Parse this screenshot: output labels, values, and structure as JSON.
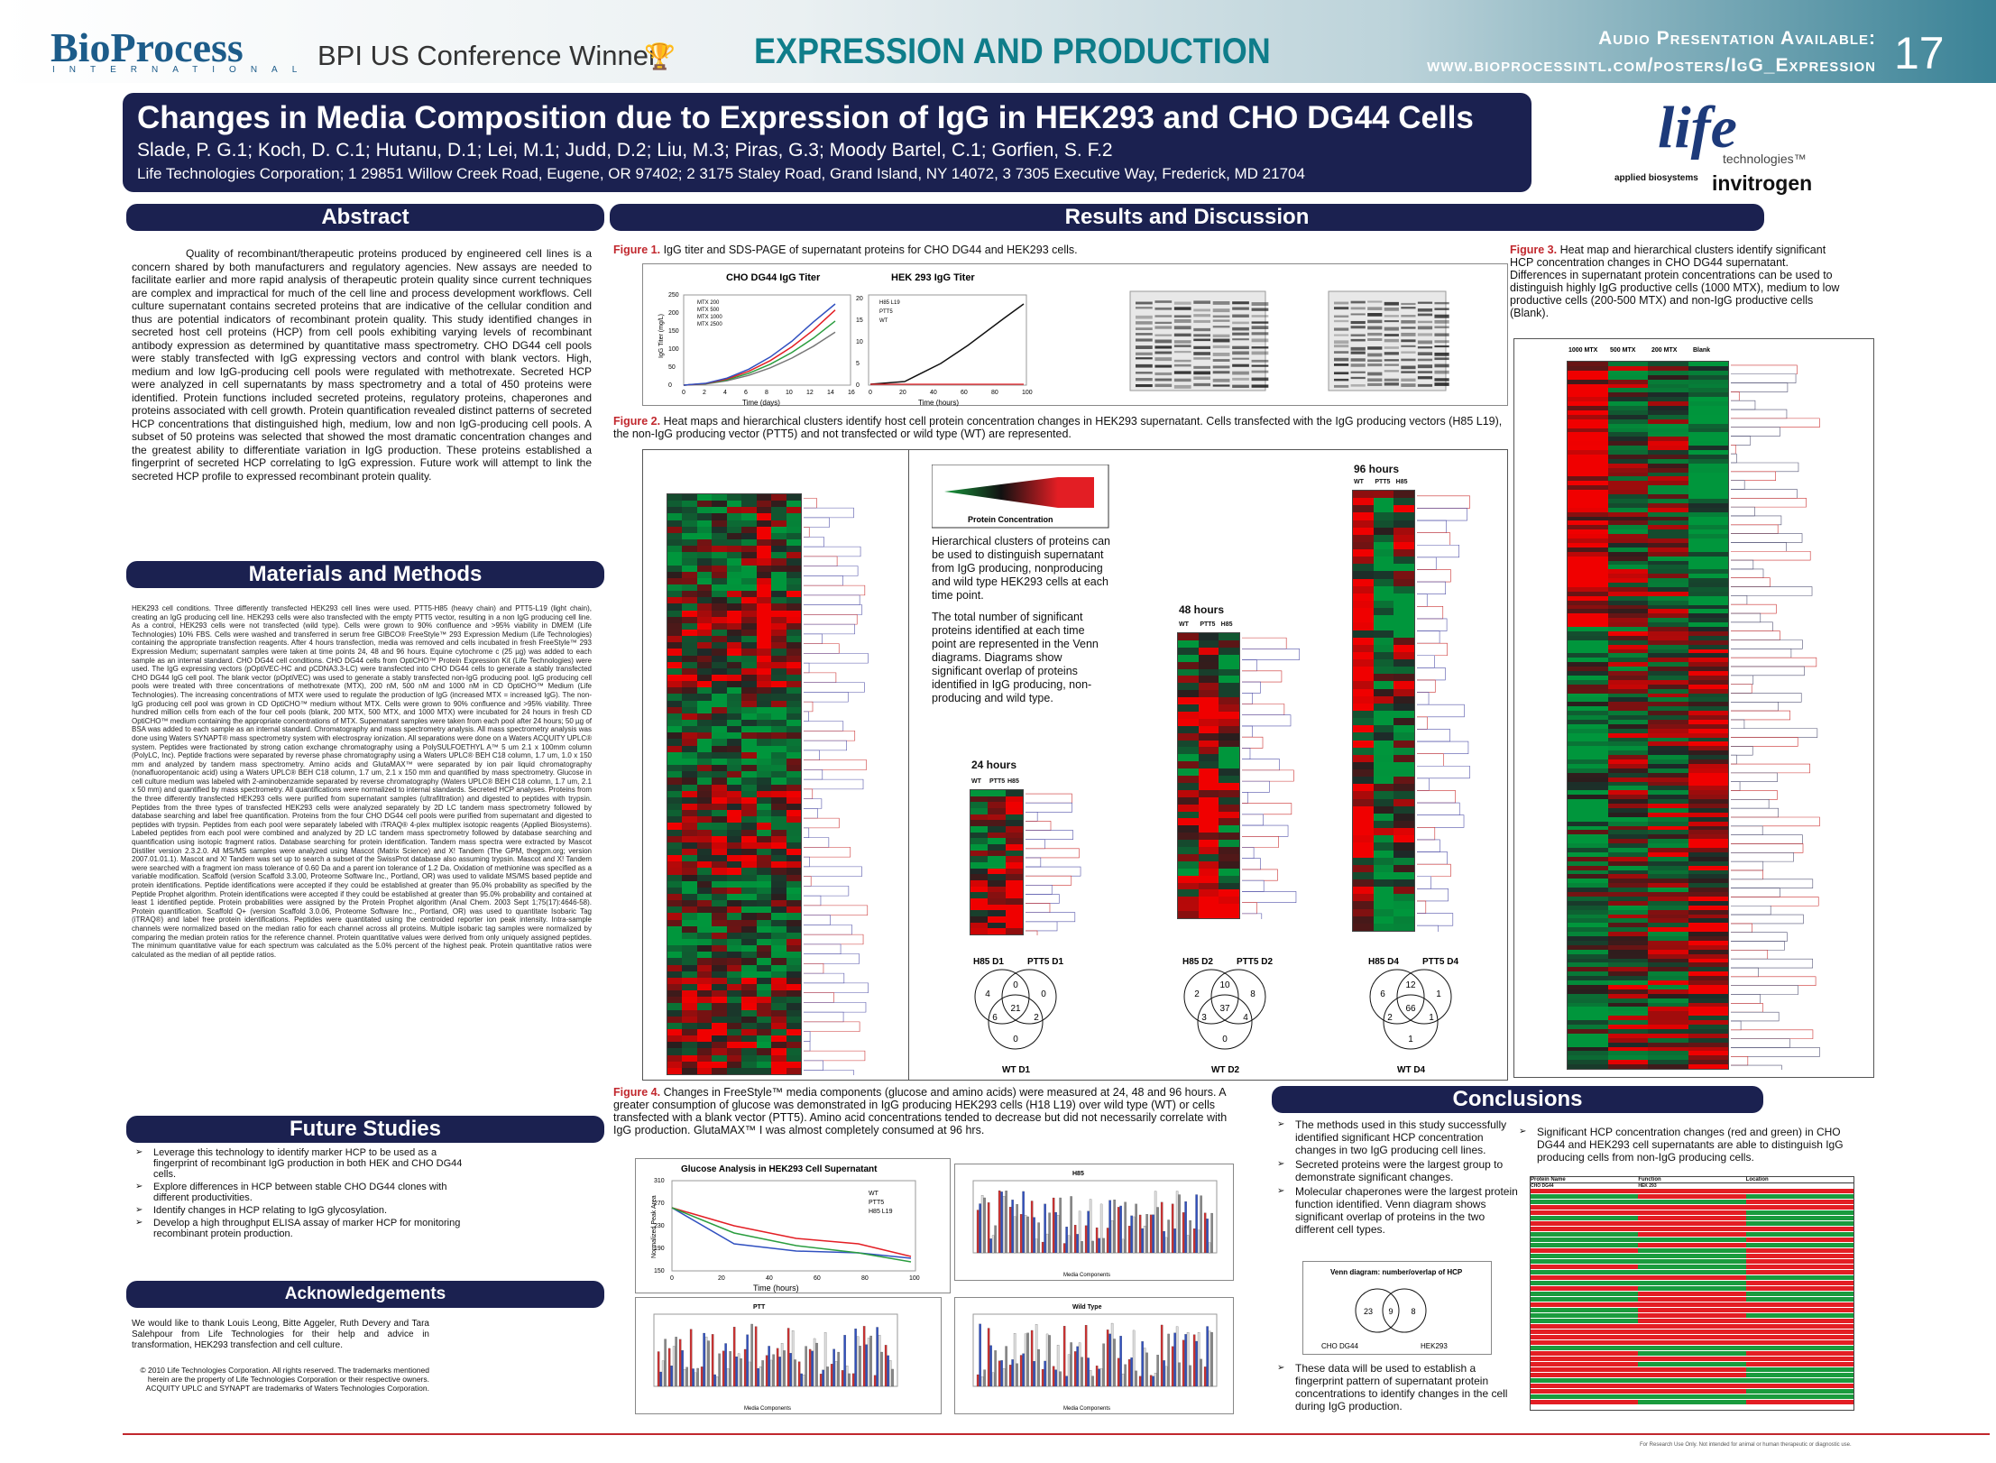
{
  "banner": {
    "journal": "BioProcess",
    "journal_sub": "INTERNATIONAL",
    "conference": "BPI US Conference Winner",
    "section": "EXPRESSION AND PRODUCTION",
    "audio_line1": "Audio Presentation Available:",
    "audio_line2": "www.bioprocessintl.com/posters/IgG_Expression",
    "page": "17"
  },
  "header": {
    "title": "Changes in Media Composition due to Expression of IgG in HEK293 and CHO DG44 Cells",
    "authors": "Slade, P. G.1; Koch, D. C.1; Hutanu, D.1; Lei, M.1; Judd, D.2; Liu, M.3; Piras, G.3; Moody Bartel, C.1; Gorfien, S. F.2",
    "affiliation": "Life Technologies Corporation; 1 29851 Willow Creek Road, Eugene, OR 97402; 2 3175 Staley Road, Grand Island, NY 14072, 3 7305 Executive Way, Frederick, MD 21704"
  },
  "logos": {
    "life": "life",
    "technologies": "technologies™",
    "applied": "applied biosystems",
    "invitrogen": "invitrogen"
  },
  "abstract": {
    "title": "Abstract",
    "text": "Quality of recombinant/therapeutic proteins produced by engineered cell lines is a concern shared by both manufacturers and regulatory agencies. New assays are needed to facilitate earlier and more rapid analysis of therapeutic protein quality since current techniques are complex and impractical for much of the cell line and process development workflows. Cell culture supernatant contains secreted proteins that are indicative of the cellular condition and thus are potential indicators of recombinant protein quality. This study identified changes in secreted host cell proteins (HCP) from cell pools exhibiting varying levels of recombinant antibody expression as determined by quantitative mass spectrometry. CHO DG44 cell pools were stably transfected with IgG expressing vectors and control with blank vectors. High, medium and low IgG-producing cell pools were regulated with methotrexate. Secreted HCP were analyzed in cell supernatants by mass spectrometry and a total of 450 proteins were identified. Protein functions included secreted proteins, regulatory proteins, chaperones and proteins associated with cell growth. Protein quantification revealed distinct patterns of secreted HCP concentrations that distinguished high, medium, low and non IgG-producing cell pools. A subset of 50 proteins was selected that showed the most dramatic concentration changes and the greatest ability to differentiate variation in IgG production. These proteins established a fingerprint of secreted HCP correlating to IgG expression. Future work will attempt to link the secreted HCP profile to expressed recombinant protein quality."
  },
  "methods": {
    "title": "Materials and Methods",
    "text": "HEK293 cell conditions. Three differently transfected HEK293 cell lines were used. PTT5-H85 (heavy chain) and PTT5-L19 (light chain), creating an IgG producing cell line. HEK293 cells were also transfected with the empty PTT5 vector, resulting in a non IgG producing cell line. As a control, HEK293 cells were not transfected (wild type). Cells were grown to 90% confluence and >95% viability in DMEM (Life Technologies) 10% FBS. Cells were washed and transferred in serum free GIBCO® FreeStyle™ 293 Expression Medium (Life Technologies) containing the appropriate transfection reagents. After 4 hours transfection, media was removed and cells incubated in fresh FreeStyle™ 293 Expression Medium; supernatant samples were taken at time points 24, 48 and 96 hours. Equine cytochrome c (25 µg) was added to each sample as an internal standard. CHO DG44 cell conditions. CHO DG44 cells from OptiCHO™ Protein Expression Kit (Life Technologies) were used. The IgG expressing vectors (pOptiVEC-HC and pCDNA3.3-LC) were transfected into CHO DG44 cells to generate a stably transfected CHO DG44 IgG cell pool. The blank vector (pOptiVEC) was used to generate a stably transfected non-IgG producing pool. IgG producing cell pools were treated with three concentrations of methotrexate (MTX), 200 nM, 500 nM and 1000 nM in CD OptiCHO™ Medium (Life Technologies). The increasing concentrations of MTX were used to regulate the production of IgG (increased MTX = increased IgG). The non-IgG producing cell pool was grown in CD OptiCHO™ medium without MTX. Cells were grown to 90% confluence and >95% viability. Three hundred million cells from each of the four cell pools (blank, 200 MTX, 500 MTX, and 1000 MTX) were incubated for 24 hours in fresh CD OptiCHO™ medium containing the appropriate concentrations of MTX. Supernatant samples were taken from each pool after 24 hours; 50 µg of BSA was added to each sample as an internal standard. Chromatography and mass spectrometry analysis. All mass spectrometry analysis was done using Waters SYNAPT® mass spectrometry system with electrospray ionization. All separations were done on a Waters ACQUITY UPLC® system. Peptides were fractionated by strong cation exchange chromatography using a PolySULFOETHYL A™ 5 um 2.1 x 100mm column (PolyLC, Inc). Peptide fractions were separated by reverse phase chromatography using a Waters UPLC® BEH C18 column, 1.7 um, 1.0 x 150 mm and analyzed by tandem mass spectrometry. Amino acids and GlutaMAX™ were separated by ion pair liquid chromatography (nonafluoropentanoic acid) using a Waters UPLC® BEH C18 column, 1.7 um, 2.1 x 150 mm and quantified by mass spectrometry. Glucose in cell culture medium was labeled with 2-aminobenzamide separated by reverse chromatography (Waters UPLC® BEH C18 column, 1.7 um, 2.1 x 50 mm) and quantified by mass spectrometry. All quantifications were normalized to internal standards. Secreted HCP analyses. Proteins from the three differently transfected HEK293 cells were purified from supernatant samples (ultrafiltration) and digested to peptides with trypsin. Peptides from the three types of transfected HEK293 cells were analyzed separately by 2D LC tandem mass spectrometry followed by database searching and label free quantification. Proteins from the four CHO DG44 cell pools were purified from supernatant and digested to peptides with trypsin. Peptides from each pool were separately labeled with iTRAQ® 4-plex multiplex isotopic reagents (Applied Biosystems). Labeled peptides from each pool were combined and analyzed by 2D LC tandem mass spectrometry followed by database searching and quantification using isotopic fragment ratios. Database searching for protein identification. Tandem mass spectra were extracted by Mascot Distiller version 2.3.2.0. All MS/MS samples were analyzed using Mascot (Matrix Science) and X! Tandem (The GPM, thegpm.org; version 2007.01.01.1). Mascot and X! Tandem was set up to search a subset of the SwissProt database also assuming trypsin. Mascot and X! Tandem were searched with a fragment ion mass tolerance of 0.60 Da and a parent ion tolerance of 1.2 Da. Oxidation of methionine was specified as a variable modification. Scaffold (version Scaffold 3.3.00, Proteome Software Inc., Portland, OR) was used to validate MS/MS based peptide and protein identifications. Peptide identifications were accepted if they could be established at greater than 95.0% probability as specified by the Peptide Prophet algorithm. Protein identifications were accepted if they could be established at greater than 95.0% probability and contained at least 1 identified peptide. Protein probabilities were assigned by the Protein Prophet algorithm (Anal Chem. 2003 Sept 1;75(17):4646-58). Protein quantification. Scaffold Q+ (version Scaffold 3.0.06, Proteome Software Inc., Portland, OR) was used to quantitate Isobaric Tag (iTRAQ®) and label free protein identifications. Peptides were quantitated using the centroided reporter ion peak intensity. Intra-sample channels were normalized based on the median ratio for each channel across all proteins. Multiple isobaric tag samples were normalized by comparing the median protein ratios for the reference channel. Protein quantitative values were derived from only uniquely assigned peptides. The minimum quantitative value for each spectrum was calculated as the 5.0% percent of the highest peak. Protein quantitative ratios were calculated as the median of all peptide ratios."
  },
  "future": {
    "title": "Future Studies",
    "items": [
      "Leverage this technology to identify marker HCP to be used as a fingerprint of recombinant IgG production in both HEK and CHO DG44 cells.",
      "Explore differences in HCP between stable CHO DG44 clones with different productivities.",
      "Identify changes in HCP relating to IgG glycosylation.",
      "Develop a high throughput ELISA assay of marker HCP for monitoring recombinant protein production."
    ]
  },
  "ack": {
    "title": "Acknowledgements",
    "text": "We would like to thank Louis Leong, Bitte Aggeler, Ruth Devery and Tara Salehpour from Life Technologies for their help and advice in transformation, HEK293 transfection and cell culture.",
    "copyright": "© 2010 Life Technologies Corporation. All rights reserved. The trademarks mentioned herein are the property of Life Technologies Corporation or their respective owners. ACQUITY UPLC and SYNAPT are trademarks of Waters Technologies Corporation."
  },
  "results": {
    "title": "Results and Discussion",
    "fig1": {
      "label": "Figure 1.",
      "text": "IgG titer and SDS-PAGE of supernatant proteins for CHO DG44 and HEK293 cells."
    },
    "fig2": {
      "label": "Figure 2.",
      "text": "Heat maps and hierarchical clusters identify host cell protein concentration changes in HEK293 supernatant. Cells transfected with the IgG producing vectors (H85 L19), the non-IgG producing vector (PTT5) and not transfected or wild type (WT) are represented."
    },
    "fig2_legend": "Protein Concentration",
    "fig2_note1": "Hierarchical clusters of proteins can be used to distinguish supernatant from IgG producing, nonproducing and wild type HEK293 cells at each time point.",
    "fig2_note2": "The total number of significant proteins identified at each time point are represented in the Venn diagrams. Diagrams show significant overlap of proteins identified in IgG producing, non-producing and wild type.",
    "hours24": "24 hours",
    "hours48": "48 hours",
    "hours96": "96 hours",
    "cols3": [
      "WT",
      "PTT5",
      "H85"
    ],
    "venn24": {
      "a": "H85 D1",
      "b": "PTT5 D1",
      "c": "WT D1",
      "v": [
        "4",
        "0",
        "0",
        "21",
        "6",
        "2",
        "0"
      ]
    },
    "venn48": {
      "a": "H85 D2",
      "b": "PTT5 D2",
      "c": "WT D2",
      "v": [
        "2",
        "10",
        "8",
        "37",
        "3",
        "4",
        "0"
      ]
    },
    "venn96": {
      "a": "H85 D4",
      "b": "PTT5 D4",
      "c": "WT D4",
      "v": [
        "6",
        "12",
        "1",
        "66",
        "2",
        "1",
        "1"
      ]
    },
    "fig3": {
      "label": "Figure 3.",
      "text": "Heat map and hierarchical clusters identify significant HCP concentration changes in CHO DG44 supernatant. Differences in supernatant protein concentrations can be used to distinguish highly IgG productive cells (1000 MTX), medium to low productive cells (200-500 MTX) and non-IgG productive cells (Blank)."
    },
    "fig3_cols": [
      "1000 MTX",
      "500 MTX",
      "200 MTX",
      "Blank"
    ],
    "fig4": {
      "label": "Figure 4.",
      "text": "Changes in FreeStyle™ media components (glucose and amino acids) were measured at 24, 48 and 96 hours. A greater consumption of glucose was demonstrated in IgG producing HEK293 cells (H18 L19) over wild type (WT) or cells transfected with a blank vector (PTT5). Amino acid concentrations tended to decrease but did not necessarily correlate with IgG production. GlutaMAX™ I was almost completely consumed at 96 hrs."
    }
  },
  "chart_cho": {
    "title": "CHO DG44 IgG Titer",
    "xlabel": "Time (days)",
    "ylabel": "IgG Titer (mg/L)",
    "xticks": [
      "0",
      "2",
      "4",
      "6",
      "8",
      "10",
      "12",
      "14",
      "16"
    ],
    "yticks": [
      "0",
      "50",
      "100",
      "150",
      "200",
      "250"
    ],
    "legend": [
      "MTX 200",
      "MTX 500",
      "MTX 1000",
      "MTX 2500"
    ]
  },
  "chart_hek": {
    "title": "HEK 293 IgG Titer",
    "xlabel": "Time (hours)",
    "xticks": [
      "0",
      "20",
      "40",
      "60",
      "80",
      "100"
    ],
    "yticks": [
      "0",
      "5",
      "10",
      "15",
      "20"
    ],
    "legend": [
      "H85 L19",
      "PTT5",
      "WT"
    ]
  },
  "chart_glucose": {
    "title": "Glucose Analysis in HEK293 Cell Supernatant",
    "xlabel": "Time (hours)",
    "ylabel": "Normalized Peak Area",
    "xticks": [
      "0",
      "20",
      "40",
      "60",
      "80",
      "100"
    ],
    "yticks": [
      "150",
      "190",
      "230",
      "270",
      "310"
    ],
    "legend": [
      "WT",
      "PTT5",
      "H85 L19"
    ]
  },
  "bar_titles": [
    "H85",
    "PTT",
    "Wild Type"
  ],
  "bar_xlabel": "Media Components",
  "conclusions": {
    "title": "Conclusions",
    "items_left": [
      "The methods used in this study successfully identified significant HCP concentration changes in two IgG producing cell lines.",
      "Secreted proteins were the largest group to demonstrate significant changes.",
      "Molecular chaperones were the largest protein function identified. Venn diagram shows significant overlap of proteins in the two different cell types."
    ],
    "item_bottom": "These data will be used to establish a fingerprint pattern of supernatant protein concentrations to identify changes in the cell during IgG production.",
    "items_right": [
      "Significant HCP concentration changes (red and green) in CHO DG44 and HEK293 cell supernatants are able to distinguish IgG producing cells from non-IgG producing cells."
    ],
    "venn_title": "Venn diagram: number/overlap of HCP",
    "venn": {
      "a": "CHO DG44",
      "b": "HEK293",
      "v": [
        "23",
        "9",
        "8"
      ]
    },
    "table_headers": [
      "Protein Name",
      "Function",
      "Location"
    ],
    "table_sub": [
      "CHO DG44",
      "HEK 293"
    ]
  },
  "footer": "For Research Use Only. Not intended for animal or human therapeutic or diagnostic use.",
  "colors": {
    "navy": "#1b2150",
    "red": "#e31e24",
    "green": "#1a9b3e",
    "caption_red": "#c1272d"
  }
}
